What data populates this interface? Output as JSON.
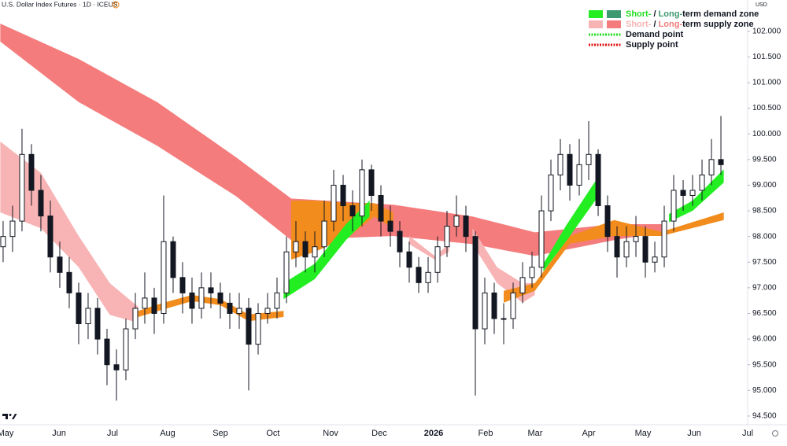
{
  "chart_data": {
    "type": "candlestick",
    "title": "U.S. Dollar Index Futures · 1D · ICEUS",
    "title_badge": "D",
    "currency": "USD",
    "xlim": [
      -0.33,
      78.83
    ],
    "ylim": [
      94.33,
      102.61
    ],
    "xticks": [
      {
        "value": 0.25,
        "label": "May"
      },
      {
        "value": 5.92,
        "label": "Jun"
      },
      {
        "value": 11.58,
        "label": "Jul"
      },
      {
        "value": 17.42,
        "label": "Aug"
      },
      {
        "value": 23,
        "label": "Sep"
      },
      {
        "value": 28.58,
        "label": "Oct"
      },
      {
        "value": 34.67,
        "label": "Nov"
      },
      {
        "value": 39.83,
        "label": "Dec"
      },
      {
        "value": 45.58,
        "label": "2026",
        "bold": true
      },
      {
        "value": 51.08,
        "label": "Feb"
      },
      {
        "value": 56.33,
        "label": "Mar"
      },
      {
        "value": 62,
        "label": "Apr"
      },
      {
        "value": 67.75,
        "label": "May"
      },
      {
        "value": 73.17,
        "label": "Jun"
      },
      {
        "value": 78.83,
        "label": "Jul"
      }
    ],
    "yticks": [
      {
        "value": 94.5,
        "label": "94.500"
      },
      {
        "value": 95,
        "label": "95.000"
      },
      {
        "value": 95.5,
        "label": "95.500"
      },
      {
        "value": 96,
        "label": "96.000"
      },
      {
        "value": 96.5,
        "label": "96.500"
      },
      {
        "value": 97,
        "label": "97.000"
      },
      {
        "value": 97.5,
        "label": "97.500"
      },
      {
        "value": 98,
        "label": "98.000"
      },
      {
        "value": 98.5,
        "label": "98.500"
      },
      {
        "value": 99,
        "label": "99.000"
      },
      {
        "value": 99.5,
        "label": "99.500"
      },
      {
        "value": 100,
        "label": "100.000"
      },
      {
        "value": 100.5,
        "label": "100.500"
      },
      {
        "value": 101,
        "label": "101.000"
      },
      {
        "value": 101.5,
        "label": "101.500"
      },
      {
        "value": 102,
        "label": "102.000"
      }
    ],
    "up_color": "#ffffff",
    "down_color": "#131722",
    "candles": {
      "x": [
        0,
        1,
        2,
        3,
        4,
        5,
        6,
        7,
        8,
        9,
        10,
        11,
        12,
        13,
        14,
        15,
        16,
        17,
        18,
        19,
        20,
        21,
        22,
        23,
        24,
        25,
        26,
        27,
        28,
        29,
        30,
        31,
        32,
        33,
        34,
        35,
        36,
        37,
        38,
        39,
        40,
        41,
        42,
        43,
        44,
        45,
        46,
        47,
        48,
        49,
        50,
        51,
        52,
        53,
        54,
        55,
        56,
        57,
        58,
        59,
        60,
        61,
        62,
        63,
        64,
        65,
        66,
        67,
        68,
        69,
        70,
        71,
        72,
        73,
        74,
        75,
        76
      ],
      "open": [
        97.8,
        98.0,
        98.3,
        99.6,
        98.9,
        98.4,
        97.6,
        97.3,
        96.9,
        96.3,
        96.6,
        96.0,
        95.5,
        95.4,
        96.2,
        96.6,
        96.8,
        96.5,
        97.9,
        97.2,
        96.9,
        96.6,
        97.0,
        96.9,
        96.7,
        96.5,
        96.6,
        95.9,
        96.5,
        96.6,
        96.9,
        97.7,
        97.9,
        97.6,
        97.8,
        98.3,
        99.0,
        98.6,
        98.4,
        99.3,
        98.8,
        98.3,
        98.1,
        97.7,
        97.4,
        97.1,
        97.3,
        97.8,
        98.2,
        98.4,
        98.0,
        96.2,
        96.9,
        96.4,
        96.4,
        96.9,
        97.2,
        97.4,
        98.5,
        99.2,
        99.6,
        99.0,
        99.4,
        99.6,
        98.6,
        98.0,
        97.6,
        97.9,
        98.0,
        97.5,
        97.6,
        98.3,
        98.9,
        98.8,
        98.9,
        99.2,
        99.5
      ],
      "high": [
        98.3,
        98.6,
        100.1,
        99.8,
        99.2,
        98.7,
        97.9,
        97.6,
        97.1,
        96.9,
        96.8,
        96.2,
        95.8,
        96.4,
        96.9,
        97.3,
        97.0,
        98.8,
        98.0,
        97.5,
        97.2,
        97.3,
        97.3,
        97.1,
        96.9,
        96.9,
        96.8,
        96.7,
        96.9,
        97.2,
        98.0,
        98.3,
        98.1,
        98.1,
        98.7,
        99.3,
        99.2,
        98.9,
        99.5,
        99.4,
        99.0,
        98.6,
        98.3,
        97.9,
        97.6,
        97.6,
        98.0,
        98.5,
        98.8,
        98.6,
        98.1,
        97.2,
        97.1,
        96.7,
        97.1,
        97.5,
        97.7,
        98.8,
        99.5,
        99.9,
        99.8,
        99.9,
        100.25,
        99.7,
        98.8,
        98.2,
        98.2,
        98.4,
        98.2,
        97.9,
        98.6,
        99.2,
        99.1,
        99.2,
        99.5,
        99.9,
        100.35
      ],
      "low": [
        97.5,
        97.7,
        98.1,
        98.6,
        98.1,
        97.3,
        97.0,
        96.6,
        95.9,
        96.0,
        95.7,
        95.1,
        94.8,
        95.2,
        96.0,
        96.3,
        96.1,
        96.3,
        96.9,
        96.5,
        96.3,
        96.4,
        96.6,
        96.4,
        96.2,
        96.2,
        95.0,
        95.7,
        96.3,
        96.4,
        96.7,
        97.4,
        97.3,
        97.3,
        97.6,
        98.1,
        98.3,
        98.1,
        98.2,
        98.5,
        98.0,
        97.8,
        97.4,
        97.1,
        96.9,
        96.9,
        97.1,
        97.6,
        98.0,
        97.7,
        94.9,
        95.9,
        96.1,
        95.9,
        96.2,
        96.7,
        97.0,
        97.2,
        98.3,
        98.9,
        98.7,
        98.8,
        99.1,
        98.4,
        97.7,
        97.2,
        97.4,
        97.6,
        97.2,
        97.3,
        97.4,
        98.1,
        98.5,
        98.6,
        98.7,
        99.0,
        99.2
      ],
      "close": [
        98.0,
        98.3,
        99.6,
        98.9,
        98.4,
        97.6,
        97.3,
        96.9,
        96.3,
        96.6,
        96.0,
        95.5,
        95.4,
        96.2,
        96.6,
        96.8,
        96.5,
        97.9,
        97.2,
        96.9,
        96.6,
        97.0,
        96.9,
        96.7,
        96.5,
        96.6,
        95.9,
        96.5,
        96.6,
        96.9,
        97.7,
        97.9,
        97.6,
        97.8,
        98.3,
        99.0,
        98.6,
        98.4,
        99.3,
        98.8,
        98.3,
        98.1,
        97.7,
        97.4,
        97.1,
        97.3,
        97.8,
        98.2,
        98.4,
        98.0,
        96.2,
        96.9,
        96.4,
        96.4,
        96.9,
        97.2,
        97.4,
        98.5,
        99.2,
        99.6,
        99.0,
        99.4,
        99.6,
        98.6,
        98.0,
        97.6,
        97.9,
        98.0,
        97.5,
        97.6,
        98.3,
        98.9,
        98.8,
        98.9,
        99.2,
        99.5,
        99.4
      ]
    },
    "bands": [
      {
        "color": "#f47c7c",
        "x": [
          -0.3,
          8,
          16.3,
          24.7,
          30.5,
          41.3,
          49.7,
          56.3,
          64.7,
          69.7
        ],
        "upper": [
          102.15,
          101.46,
          100.62,
          99.54,
          98.74,
          98.62,
          98.39,
          98.08,
          98.24,
          98.24
        ],
        "lower": [
          101.8,
          100.62,
          99.77,
          98.78,
          97.93,
          98.01,
          97.85,
          97.62,
          97.93,
          98.08
        ]
      },
      {
        "color": "#f8b4b4",
        "x": [
          -0.3,
          4,
          8,
          11.3,
          14.3
        ],
        "upper": [
          99.85,
          99.24,
          98.01,
          97.09,
          96.63
        ],
        "lower": [
          98.47,
          98.16,
          97.4,
          96.47,
          96.32
        ]
      },
      {
        "color": "#f8b4b4",
        "x": [
          43,
          45.7,
          47.2
        ],
        "upper": [
          98.01,
          97.62,
          97.85
        ],
        "lower": [
          97.85,
          97.55,
          97.7
        ]
      },
      {
        "color": "#f8b4b4",
        "x": [
          49.7,
          52.3,
          55,
          56.3
        ],
        "upper": [
          98.16,
          97.4,
          97.09,
          97.09
        ],
        "lower": [
          97.85,
          97.09,
          96.71,
          96.86
        ]
      },
      {
        "color": "#f28c1c",
        "x": [
          14.3,
          17,
          20,
          23,
          26,
          29.7
        ],
        "upper": [
          96.55,
          96.71,
          96.86,
          96.78,
          96.48,
          96.55
        ],
        "lower": [
          96.43,
          96.58,
          96.74,
          96.66,
          96.35,
          96.43
        ]
      },
      {
        "color": "#f28c1c",
        "x": [
          30.5,
          33,
          36.7,
          39.3,
          41.3
        ],
        "upper": [
          98.7,
          98.7,
          98.65,
          98.65,
          98.47
        ],
        "lower": [
          97.55,
          97.7,
          98.01,
          98.39,
          98.16
        ]
      },
      {
        "color": "#f28c1c",
        "x": [
          53,
          56.3,
          60,
          64.7,
          69.7,
          76.3
        ],
        "upper": [
          96.94,
          97.09,
          98.01,
          98.32,
          98.09,
          98.47
        ],
        "lower": [
          96.71,
          96.94,
          97.86,
          98.01,
          98.01,
          98.32
        ]
      },
      {
        "color": "#22ee22",
        "x": [
          29.7,
          33,
          36.3,
          38.8
        ],
        "upper": [
          97.09,
          97.47,
          98.24,
          98.7
        ],
        "lower": [
          96.78,
          97.17,
          97.93,
          98.39
        ]
      },
      {
        "color": "#22ee22",
        "x": [
          57.2,
          59.7,
          63
        ],
        "upper": [
          97.47,
          98.24,
          99.16
        ],
        "lower": [
          97.32,
          97.93,
          98.78
        ]
      },
      {
        "color": "#22ee22",
        "x": [
          70.5,
          73,
          76.3
        ],
        "upper": [
          98.44,
          98.7,
          99.31
        ],
        "lower": [
          98.28,
          98.5,
          99.05
        ]
      }
    ],
    "legend": [
      {
        "swatches": [
          "#22ee22",
          "#3d9970"
        ],
        "parts": [
          {
            "text": "Short-",
            "color": "#22dd22"
          },
          {
            "text": " / ",
            "color": "#131722"
          },
          {
            "text": "Long-",
            "color": "#3d9970"
          },
          {
            "text": "term demand zone",
            "color": "#131722"
          }
        ]
      },
      {
        "swatches": [
          "#f8b4b4",
          "#f47c7c"
        ],
        "parts": [
          {
            "text": "Short-",
            "color": "#f8b4b4"
          },
          {
            "text": " / ",
            "color": "#131722"
          },
          {
            "text": "Long-",
            "color": "#f47c7c"
          },
          {
            "text": "term supply zone",
            "color": "#131722"
          }
        ]
      },
      {
        "dotted": "#22dd22",
        "parts": [
          {
            "text": "Demand point",
            "color": "#131722"
          }
        ]
      },
      {
        "dotted": "#e01010",
        "parts": [
          {
            "text": "Supply point",
            "color": "#131722"
          }
        ]
      }
    ]
  }
}
